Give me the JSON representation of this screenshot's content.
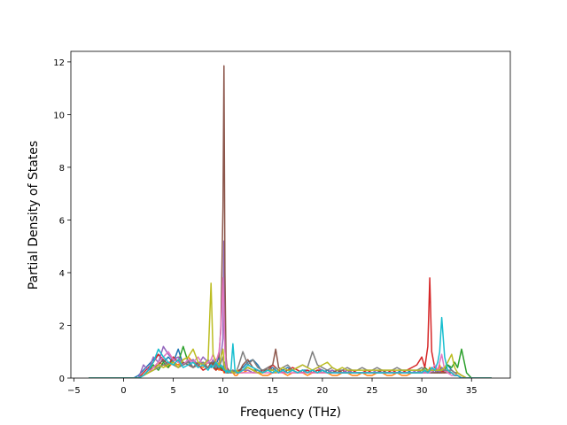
{
  "chart_data": {
    "type": "line",
    "title": "",
    "xlabel": "Frequency (THz)",
    "ylabel": "Partial Density of States",
    "xlim": [
      -5.3,
      38.9
    ],
    "ylim": [
      0,
      12.4
    ],
    "xticks": [
      -5,
      0,
      5,
      10,
      15,
      20,
      25,
      30,
      35
    ],
    "yticks": [
      0,
      2,
      4,
      6,
      8,
      10,
      12
    ],
    "grid": false,
    "legend": "none",
    "x": [
      -3.5,
      -2,
      -1,
      0,
      1,
      1.5,
      2,
      2.5,
      3,
      3.5,
      4,
      4.5,
      5,
      5.5,
      6,
      6.5,
      7,
      7.5,
      8,
      8.5,
      8.8,
      9,
      9.3,
      9.6,
      9.8,
      10,
      10.1,
      10.2,
      10.3,
      10.4,
      10.6,
      10.8,
      11,
      11.2,
      11.4,
      11.6,
      12,
      12.5,
      13,
      13.5,
      14,
      14.5,
      15,
      15.3,
      15.6,
      16,
      16.5,
      17,
      17.5,
      18,
      18.5,
      19,
      19.5,
      20,
      20.5,
      21,
      21.5,
      22,
      22.5,
      23,
      23.5,
      24,
      24.5,
      25,
      25.5,
      26,
      26.5,
      27,
      27.5,
      28,
      28.5,
      29,
      29.5,
      30,
      30.3,
      30.6,
      30.8,
      31,
      31.3,
      31.6,
      31.8,
      32,
      32.3,
      32.6,
      33,
      33.3,
      33.6,
      34,
      34.5,
      35,
      36,
      37
    ],
    "series": [
      {
        "color": "#1f77b4",
        "values": [
          0,
          0,
          0,
          0,
          0,
          0.1,
          0.3,
          0.5,
          0.7,
          0.9,
          0.6,
          0.8,
          0.6,
          1.1,
          0.5,
          0.7,
          0.4,
          0.6,
          0.5,
          0.7,
          0.4,
          0.6,
          0.5,
          0.8,
          0.3,
          0.4,
          0.5,
          0.6,
          0.4,
          0.3,
          0.2,
          0.3,
          0.2,
          0.3,
          0.2,
          0.3,
          0.4,
          0.6,
          0.7,
          0.5,
          0.2,
          0.3,
          0.4,
          0.3,
          0.2,
          0.3,
          0.4,
          0.3,
          0.2,
          0.3,
          0.3,
          0.2,
          0.3,
          0.2,
          0.3,
          0.2,
          0.2,
          0.2,
          0.3,
          0.2,
          0.2,
          0.2,
          0.2,
          0.2,
          0.2,
          0.2,
          0.2,
          0.2,
          0.2,
          0.3,
          0.3,
          0.2,
          0.2,
          0.3,
          0.2,
          0.2,
          0.2,
          0.2,
          0.2,
          0.2,
          0.2,
          0.2,
          0.3,
          0.5,
          0.3,
          0.2,
          0.2,
          0.1,
          0,
          0,
          0,
          0
        ]
      },
      {
        "color": "#ff7f0e",
        "values": [
          0,
          0,
          0,
          0,
          0,
          0,
          0.1,
          0.2,
          0.4,
          0.6,
          0.5,
          0.4,
          0.6,
          0.5,
          0.7,
          0.8,
          0.6,
          0.5,
          0.4,
          0.6,
          0.5,
          0.7,
          0.4,
          0.3,
          0.4,
          0.3,
          0.2,
          0.3,
          0.2,
          0.2,
          0.2,
          0.2,
          0.2,
          0.1,
          0.1,
          0.2,
          0.2,
          0.3,
          0.2,
          0.2,
          0.1,
          0.1,
          0.2,
          0.2,
          0.3,
          0.2,
          0.1,
          0.2,
          0.2,
          0.2,
          0.1,
          0.2,
          0.2,
          0.2,
          0.2,
          0.1,
          0.1,
          0.2,
          0.2,
          0.1,
          0.1,
          0.2,
          0.1,
          0.1,
          0.2,
          0.2,
          0.1,
          0.1,
          0.2,
          0.1,
          0.1,
          0.2,
          0.2,
          0.2,
          0.3,
          0.2,
          0.4,
          0.3,
          0.2,
          0.2,
          0.5,
          0.2,
          0.2,
          0.3,
          0.2,
          0.1,
          0.2,
          0.1,
          0,
          0,
          0,
          0
        ]
      },
      {
        "color": "#2ca02c",
        "values": [
          0,
          0,
          0,
          0,
          0,
          0,
          0.1,
          0.3,
          0.5,
          0.3,
          0.6,
          0.4,
          0.8,
          0.6,
          1.2,
          0.6,
          0.7,
          0.5,
          0.6,
          0.4,
          0.5,
          0.6,
          0.3,
          0.5,
          0.4,
          0.3,
          0.4,
          0.3,
          0.5,
          0.2,
          0.3,
          0.2,
          0.3,
          0.2,
          0.2,
          0.3,
          0.3,
          0.4,
          0.3,
          0.3,
          0.2,
          0.3,
          0.3,
          0.4,
          0.3,
          0.2,
          0.3,
          0.3,
          0.2,
          0.3,
          0.2,
          0.3,
          0.2,
          0.3,
          0.2,
          0.2,
          0.3,
          0.2,
          0.2,
          0.2,
          0.2,
          0.2,
          0.2,
          0.2,
          0.2,
          0.2,
          0.2,
          0.2,
          0.2,
          0.2,
          0.2,
          0.2,
          0.2,
          0.3,
          0.4,
          0.3,
          0.2,
          0.3,
          0.3,
          0.2,
          0.3,
          0.4,
          0.3,
          0.5,
          0.4,
          0.6,
          0.4,
          1.1,
          0.2,
          0,
          0,
          0
        ]
      },
      {
        "color": "#d62728",
        "values": [
          0,
          0,
          0,
          0,
          0,
          0,
          0.2,
          0.4,
          0.6,
          0.9,
          0.7,
          0.5,
          0.8,
          0.6,
          0.5,
          0.6,
          0.4,
          0.5,
          0.3,
          0.4,
          0.5,
          0.4,
          0.3,
          0.4,
          0.3,
          0.3,
          0.3,
          0.2,
          0.3,
          0.2,
          0.2,
          0.3,
          0.2,
          0.2,
          0.2,
          0.3,
          0.3,
          0.4,
          0.3,
          0.2,
          0.3,
          0.3,
          0.5,
          0.4,
          0.3,
          0.2,
          0.3,
          0.4,
          0.3,
          0.2,
          0.3,
          0.2,
          0.3,
          0.3,
          0.2,
          0.3,
          0.2,
          0.3,
          0.2,
          0.3,
          0.2,
          0.2,
          0.3,
          0.2,
          0.2,
          0.3,
          0.2,
          0.3,
          0.2,
          0.2,
          0.3,
          0.4,
          0.5,
          0.8,
          0.4,
          1.2,
          3.8,
          1.0,
          0.4,
          0.3,
          0.2,
          0.3,
          0.2,
          0.3,
          0.2,
          0.1,
          0.1,
          0,
          0,
          0,
          0,
          0
        ]
      },
      {
        "color": "#9467bd",
        "values": [
          0,
          0,
          0,
          0,
          0,
          0,
          0.5,
          0.3,
          0.8,
          0.6,
          1.2,
          0.9,
          0.7,
          0.8,
          0.5,
          0.6,
          0.7,
          0.5,
          0.8,
          0.6,
          0.5,
          0.7,
          0.4,
          0.6,
          0.8,
          1.5,
          5.2,
          1.2,
          0.5,
          0.3,
          0.3,
          0.2,
          0.3,
          0.2,
          0.2,
          0.2,
          0.3,
          0.3,
          0.2,
          0.3,
          0.2,
          0.3,
          0.2,
          0.3,
          0.2,
          0.3,
          0.2,
          0.3,
          0.2,
          0.3,
          0.2,
          0.3,
          0.4,
          0.3,
          0.2,
          0.3,
          0.2,
          0.2,
          0.3,
          0.2,
          0.2,
          0.2,
          0.2,
          0.2,
          0.3,
          0.2,
          0.2,
          0.2,
          0.2,
          0.2,
          0.2,
          0.2,
          0.3,
          0.2,
          0.2,
          0.2,
          0.2,
          0.3,
          0.2,
          0.3,
          0.2,
          0.4,
          0.3,
          0.2,
          0.2,
          0.1,
          0.1,
          0,
          0,
          0,
          0,
          0
        ]
      },
      {
        "color": "#8c564b",
        "values": [
          0,
          0,
          0,
          0,
          0,
          0,
          0.1,
          0.3,
          0.4,
          0.5,
          0.7,
          0.5,
          0.6,
          0.4,
          0.6,
          0.5,
          0.4,
          0.6,
          0.5,
          0.4,
          0.6,
          0.5,
          0.7,
          0.8,
          2.0,
          6.5,
          11.85,
          4.0,
          0.8,
          0.4,
          0.3,
          0.2,
          0.3,
          0.2,
          0.3,
          0.2,
          0.5,
          0.7,
          0.4,
          0.3,
          0.2,
          0.4,
          0.5,
          1.1,
          0.4,
          0.3,
          0.2,
          0.3,
          0.2,
          0.3,
          0.2,
          0.3,
          0.2,
          0.3,
          0.2,
          0.2,
          0.3,
          0.2,
          0.2,
          0.2,
          0.2,
          0.2,
          0.2,
          0.2,
          0.2,
          0.3,
          0.2,
          0.2,
          0.2,
          0.2,
          0.2,
          0.2,
          0.2,
          0.2,
          0.2,
          0.3,
          0.2,
          0.2,
          0.2,
          0.2,
          0.2,
          0.2,
          0.2,
          0.2,
          0.2,
          0.1,
          0.1,
          0,
          0,
          0,
          0,
          0
        ]
      },
      {
        "color": "#e377c2",
        "values": [
          0,
          0,
          0,
          0,
          0,
          0,
          0.1,
          0.2,
          0.4,
          0.6,
          0.8,
          1.0,
          0.7,
          0.6,
          0.5,
          0.7,
          0.6,
          0.8,
          0.5,
          0.6,
          0.7,
          0.9,
          0.6,
          1.0,
          1.8,
          3.8,
          2.4,
          1.0,
          0.5,
          0.3,
          0.2,
          0.2,
          0.2,
          0.2,
          0.2,
          0.2,
          0.2,
          0.2,
          0.2,
          0.2,
          0.2,
          0.2,
          0.2,
          0.2,
          0.2,
          0.2,
          0.2,
          0.2,
          0.2,
          0.2,
          0.2,
          0.2,
          0.2,
          0.2,
          0.2,
          0.2,
          0.2,
          0.2,
          0.2,
          0.2,
          0.2,
          0.2,
          0.2,
          0.2,
          0.2,
          0.2,
          0.2,
          0.2,
          0.2,
          0.2,
          0.2,
          0.2,
          0.2,
          0.2,
          0.2,
          0.2,
          0.2,
          0.3,
          0.5,
          0.3,
          0.6,
          0.9,
          0.3,
          0.2,
          0.1,
          0.1,
          0.1,
          0,
          0,
          0,
          0,
          0
        ]
      },
      {
        "color": "#7f7f7f",
        "values": [
          0,
          0,
          0,
          0,
          0,
          0,
          0.1,
          0.2,
          0.3,
          0.4,
          0.5,
          0.6,
          0.5,
          0.4,
          0.5,
          0.6,
          0.4,
          0.5,
          0.6,
          0.4,
          0.5,
          0.4,
          0.5,
          0.4,
          0.6,
          0.8,
          0.4,
          0.3,
          0.3,
          0.2,
          0.3,
          0.2,
          0.3,
          0.2,
          0.3,
          0.5,
          1.0,
          0.5,
          0.7,
          0.4,
          0.3,
          0.4,
          0.3,
          0.4,
          0.3,
          0.4,
          0.5,
          0.3,
          0.4,
          0.5,
          0.4,
          1.0,
          0.5,
          0.4,
          0.3,
          0.4,
          0.3,
          0.3,
          0.4,
          0.3,
          0.3,
          0.4,
          0.3,
          0.3,
          0.4,
          0.3,
          0.3,
          0.3,
          0.4,
          0.3,
          0.3,
          0.3,
          0.3,
          0.4,
          0.3,
          0.3,
          0.3,
          0.3,
          0.3,
          0.3,
          0.3,
          0.3,
          0.3,
          0.3,
          0.3,
          0.2,
          0.2,
          0.1,
          0,
          0,
          0,
          0
        ]
      },
      {
        "color": "#bcbd22",
        "values": [
          0,
          0,
          0,
          0,
          0,
          0,
          0.1,
          0.2,
          0.3,
          0.5,
          0.4,
          0.5,
          0.6,
          0.4,
          0.7,
          0.8,
          1.1,
          0.6,
          0.5,
          0.7,
          3.6,
          0.9,
          0.6,
          0.5,
          0.8,
          1.1,
          0.6,
          0.4,
          0.3,
          0.3,
          0.2,
          0.3,
          0.2,
          0.2,
          0.3,
          0.2,
          0.3,
          0.4,
          0.3,
          0.2,
          0.2,
          0.3,
          0.3,
          0.2,
          0.3,
          0.4,
          0.3,
          0.3,
          0.4,
          0.5,
          0.4,
          0.3,
          0.4,
          0.5,
          0.6,
          0.4,
          0.3,
          0.4,
          0.3,
          0.3,
          0.3,
          0.3,
          0.3,
          0.3,
          0.3,
          0.3,
          0.3,
          0.3,
          0.3,
          0.3,
          0.3,
          0.3,
          0.3,
          0.3,
          0.3,
          0.3,
          0.3,
          0.3,
          0.3,
          0.3,
          0.3,
          0.3,
          0.4,
          0.6,
          0.9,
          0.4,
          0.2,
          0.1,
          0,
          0,
          0,
          0
        ]
      },
      {
        "color": "#17becf",
        "values": [
          0,
          0,
          0,
          0,
          0,
          0,
          0.1,
          0.3,
          0.6,
          1.1,
          0.8,
          0.6,
          0.5,
          0.7,
          0.4,
          0.5,
          0.6,
          0.4,
          0.5,
          0.3,
          0.5,
          0.4,
          0.6,
          0.4,
          0.5,
          0.4,
          0.3,
          0.3,
          0.2,
          0.3,
          0.2,
          0.3,
          1.3,
          0.3,
          0.2,
          0.2,
          0.3,
          0.5,
          0.4,
          0.3,
          0.2,
          0.3,
          0.2,
          0.3,
          0.2,
          0.3,
          0.2,
          0.3,
          0.2,
          0.3,
          0.2,
          0.3,
          0.2,
          0.3,
          0.2,
          0.2,
          0.2,
          0.2,
          0.2,
          0.2,
          0.2,
          0.2,
          0.2,
          0.2,
          0.2,
          0.2,
          0.2,
          0.2,
          0.2,
          0.2,
          0.2,
          0.2,
          0.2,
          0.2,
          0.3,
          0.2,
          0.3,
          0.4,
          0.3,
          0.6,
          1.0,
          2.3,
          0.8,
          0.3,
          0.2,
          0.1,
          0.1,
          0,
          0,
          0,
          0,
          0
        ]
      }
    ]
  }
}
